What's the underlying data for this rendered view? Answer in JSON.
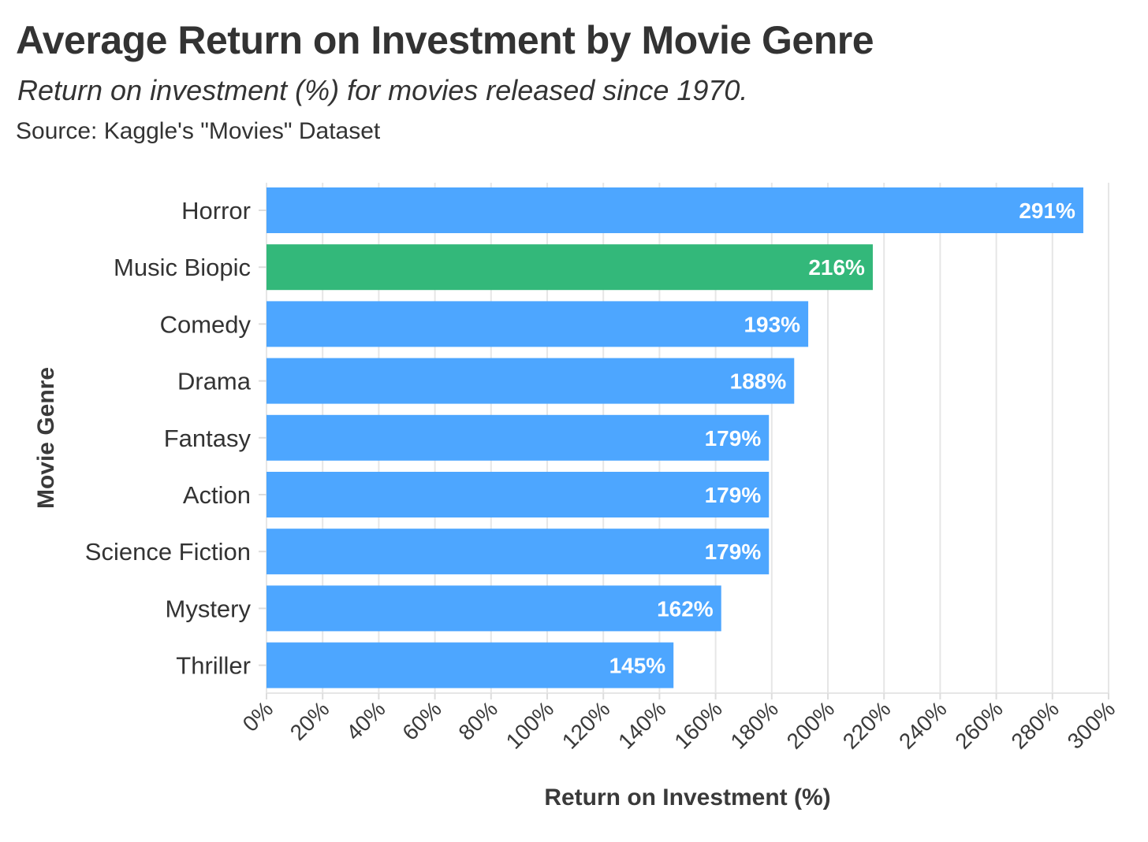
{
  "header": {
    "title": "Average Return on Investment by Movie Genre",
    "subtitle": "Return on investment (%) for movies released since 1970.",
    "source": "Source: Kaggle's \"Movies\" Dataset"
  },
  "colors": {
    "default_bar": "#4da6ff",
    "highlight_bar": "#33b87a",
    "grid": "#e6e6e6",
    "text": "#333333"
  },
  "chart_data": {
    "type": "bar",
    "orientation": "horizontal",
    "title": "Average Return on Investment by Movie Genre",
    "subtitle": "Return on investment (%) for movies released since 1970.",
    "xlabel": "Return on Investment (%)",
    "ylabel": "Movie Genre",
    "categories": [
      "Horror",
      "Music Biopic",
      "Comedy",
      "Drama",
      "Fantasy",
      "Action",
      "Science Fiction",
      "Mystery",
      "Thriller"
    ],
    "values": [
      291,
      216,
      193,
      188,
      179,
      179,
      179,
      162,
      145
    ],
    "data_labels": [
      "291%",
      "216%",
      "193%",
      "188%",
      "179%",
      "179%",
      "179%",
      "162%",
      "145%"
    ],
    "highlight": "Music Biopic",
    "xlim": [
      0,
      300
    ],
    "x_ticks": [
      0,
      20,
      40,
      60,
      80,
      100,
      120,
      140,
      160,
      180,
      200,
      220,
      240,
      260,
      280,
      300
    ],
    "x_tick_labels": [
      "0%",
      "20%",
      "40%",
      "60%",
      "80%",
      "100%",
      "120%",
      "140%",
      "160%",
      "180%",
      "200%",
      "220%",
      "240%",
      "260%",
      "280%",
      "300%"
    ],
    "grid": true,
    "legend": "none"
  }
}
